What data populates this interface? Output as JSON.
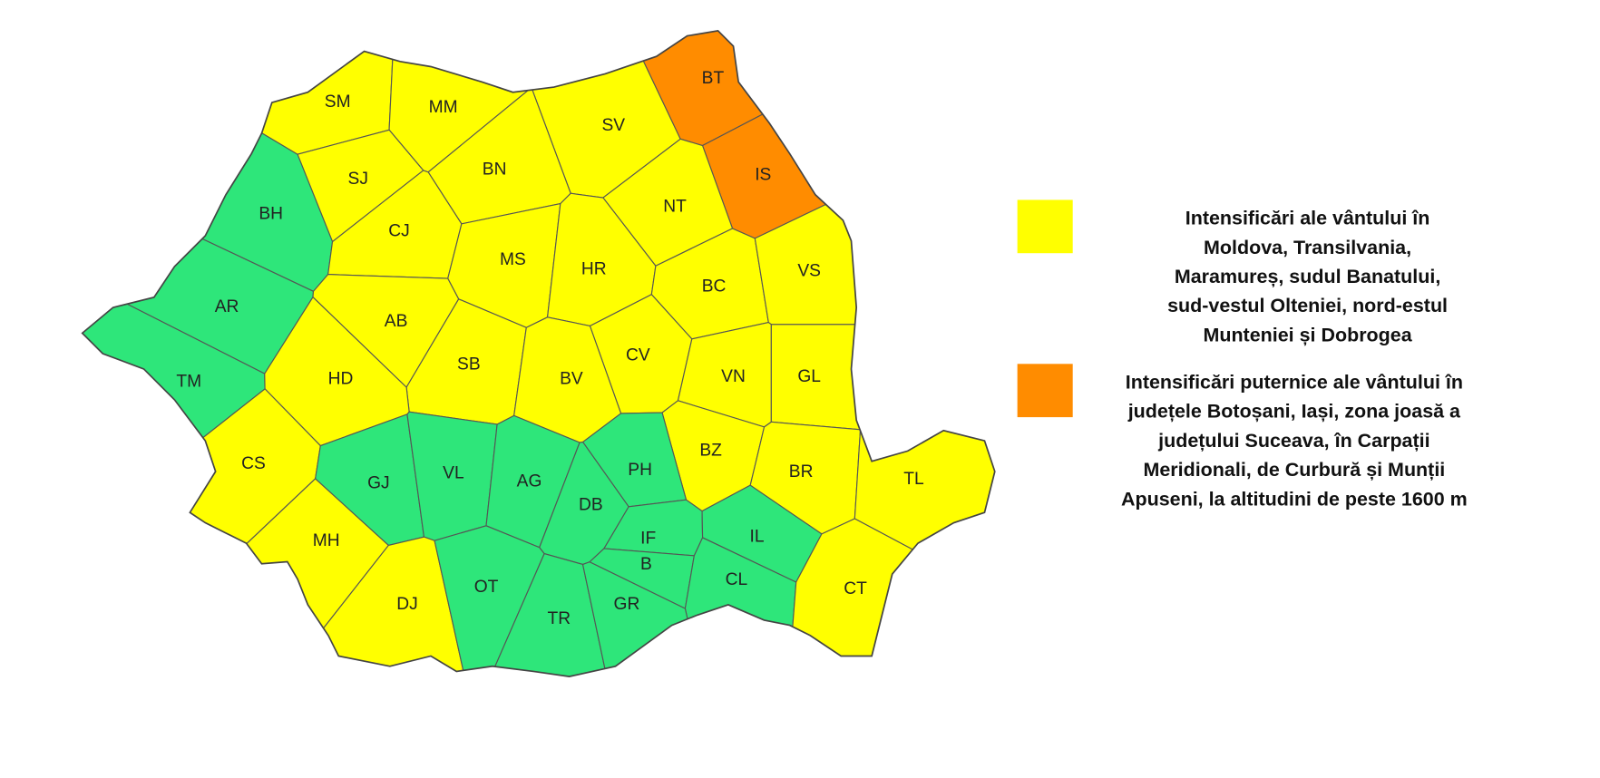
{
  "map": {
    "regions": [
      {
        "code": "SM",
        "color": "#ffff00"
      },
      {
        "code": "MM",
        "color": "#ffff00"
      },
      {
        "code": "SV",
        "color": "#ffff00"
      },
      {
        "code": "BT",
        "color": "#ff8c00"
      },
      {
        "code": "IS",
        "color": "#ff8c00"
      },
      {
        "code": "SJ",
        "color": "#ffff00"
      },
      {
        "code": "BN",
        "color": "#ffff00"
      },
      {
        "code": "NT",
        "color": "#ffff00"
      },
      {
        "code": "BH",
        "color": "#2ee67a"
      },
      {
        "code": "CJ",
        "color": "#ffff00"
      },
      {
        "code": "MS",
        "color": "#ffff00"
      },
      {
        "code": "HR",
        "color": "#ffff00"
      },
      {
        "code": "BC",
        "color": "#ffff00"
      },
      {
        "code": "VS",
        "color": "#ffff00"
      },
      {
        "code": "AR",
        "color": "#2ee67a"
      },
      {
        "code": "AB",
        "color": "#ffff00"
      },
      {
        "code": "SB",
        "color": "#ffff00"
      },
      {
        "code": "CV",
        "color": "#ffff00"
      },
      {
        "code": "VN",
        "color": "#ffff00"
      },
      {
        "code": "GL",
        "color": "#ffff00"
      },
      {
        "code": "TM",
        "color": "#2ee67a"
      },
      {
        "code": "HD",
        "color": "#ffff00"
      },
      {
        "code": "BV",
        "color": "#ffff00"
      },
      {
        "code": "BZ",
        "color": "#ffff00"
      },
      {
        "code": "BR",
        "color": "#ffff00"
      },
      {
        "code": "TL",
        "color": "#ffff00"
      },
      {
        "code": "CS",
        "color": "#ffff00"
      },
      {
        "code": "GJ",
        "color": "#2ee67a"
      },
      {
        "code": "VL",
        "color": "#2ee67a"
      },
      {
        "code": "AG",
        "color": "#2ee67a"
      },
      {
        "code": "DB",
        "color": "#2ee67a"
      },
      {
        "code": "PH",
        "color": "#2ee67a"
      },
      {
        "code": "IF",
        "color": "#2ee67a"
      },
      {
        "code": "B",
        "color": "#2ee67a"
      },
      {
        "code": "IL",
        "color": "#2ee67a"
      },
      {
        "code": "CL",
        "color": "#2ee67a"
      },
      {
        "code": "CT",
        "color": "#ffff00"
      },
      {
        "code": "MH",
        "color": "#ffff00"
      },
      {
        "code": "DJ",
        "color": "#ffff00"
      },
      {
        "code": "OT",
        "color": "#2ee67a"
      },
      {
        "code": "TR",
        "color": "#2ee67a"
      },
      {
        "code": "GR",
        "color": "#2ee67a"
      }
    ],
    "legend": [
      {
        "color": "#ffff00",
        "lines": [
          "Intensificări ale vântului în",
          "Moldova, Transilvania,",
          "Maramureș, sudul Banatului,",
          "sud-vestul Olteniei, nord-estul",
          "Munteniei și Dobrogea"
        ]
      },
      {
        "color": "#ff8c00",
        "lines": [
          "Intensificări puternice ale vântului în",
          "județele Botoșani, Iași, zona joasă a",
          "județului Suceava, în Carpații",
          "Meridionali, de Curbură și Munții",
          "Apuseni, la altitudini de peste 1600 m"
        ]
      }
    ]
  }
}
